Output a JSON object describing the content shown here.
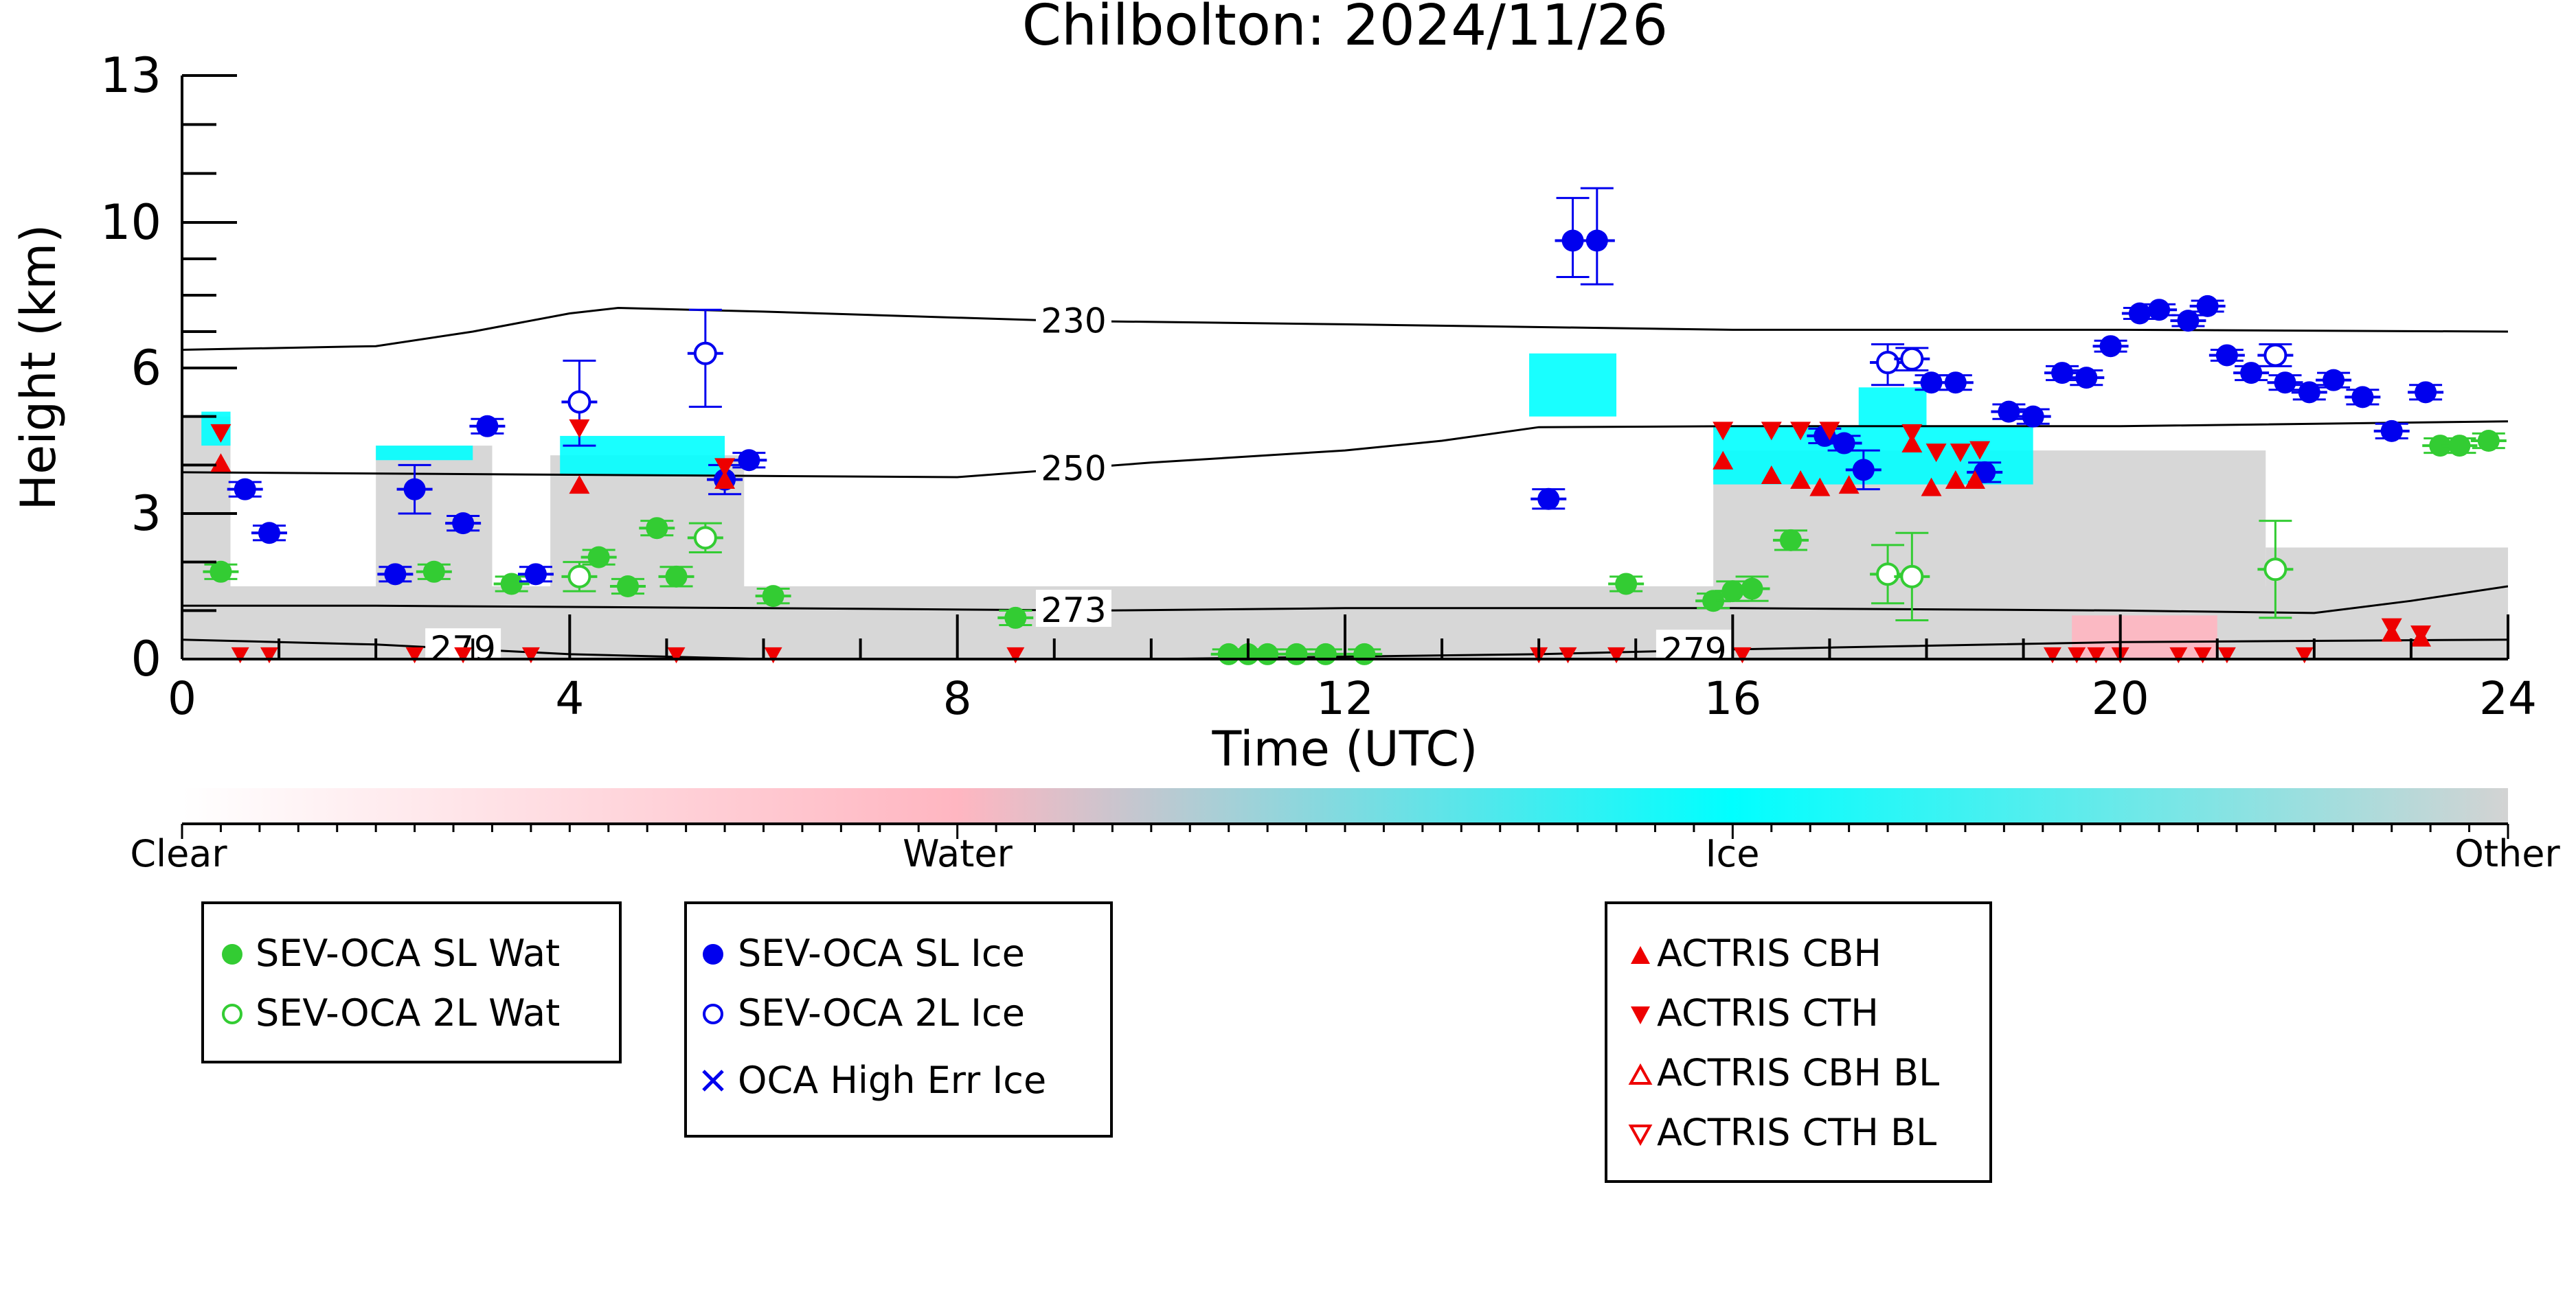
{
  "chart_data": {
    "type": "scatter",
    "title": "Chilbolton: 2024/11/26",
    "xlabel": "Time (UTC)",
    "ylabel": "Height (km)",
    "xlim": [
      0,
      24
    ],
    "xticks": [
      0,
      4,
      8,
      12,
      16,
      20,
      24
    ],
    "xtick_labels": [
      "0",
      "4",
      "8",
      "12",
      "16",
      "20",
      "24"
    ],
    "yticks": [
      0,
      3,
      6,
      10,
      13
    ],
    "ytick_labels": [
      "0",
      "3",
      "6",
      "10",
      "13"
    ],
    "grid": false,
    "background": {
      "description": "cloud phase classification field",
      "colorbar_labels": [
        "Clear",
        "Water",
        "Ice",
        "Other"
      ],
      "colors": {
        "clear": "#ffffff",
        "water": "#ffb6c1",
        "ice": "#00ffff",
        "other": "#d3d3d3"
      }
    },
    "contours": [
      {
        "label": "230",
        "x": [
          0,
          2,
          3,
          4,
          4.5,
          6,
          9,
          12,
          16,
          20,
          24
        ],
        "y": [
          6.5,
          6.6,
          7.0,
          7.5,
          7.65,
          7.55,
          7.3,
          7.2,
          7.05,
          7.05,
          7.0
        ]
      },
      {
        "label": "250",
        "x": [
          0,
          4,
          8,
          10,
          12,
          13,
          14,
          16,
          20,
          24
        ],
        "y": [
          3.85,
          3.8,
          3.75,
          4.05,
          4.3,
          4.5,
          4.78,
          4.8,
          4.8,
          4.9
        ]
      },
      {
        "label": "273",
        "x": [
          0,
          2,
          6,
          9.5,
          12,
          16,
          20,
          22,
          23,
          24
        ],
        "y": [
          1.1,
          1.1,
          1.05,
          1.0,
          1.05,
          1.05,
          1.0,
          0.95,
          1.2,
          1.5
        ]
      },
      {
        "label": "279",
        "x": [
          0,
          2,
          4,
          6,
          8,
          12,
          14,
          16,
          20,
          24
        ],
        "y": [
          0.4,
          0.3,
          0.1,
          0.0,
          -0.05,
          0.05,
          0.1,
          0.2,
          0.35,
          0.4
        ]
      }
    ],
    "series": [
      {
        "name": "SEV-OCA SL Wat",
        "color": "#33cc33",
        "marker": "filled-circle",
        "x": [
          0.4,
          2.6,
          3.4,
          4.3,
          4.6,
          4.9,
          5.1,
          6.1,
          8.6,
          10.8,
          11.0,
          11.2,
          11.5,
          11.8,
          12.2,
          14.9,
          15.8,
          16.0,
          16.2,
          16.6,
          23.3,
          23.5,
          23.8
        ],
        "y": [
          1.8,
          1.8,
          1.55,
          2.1,
          1.5,
          2.7,
          1.7,
          1.3,
          0.85,
          0.1,
          0.1,
          0.1,
          0.1,
          0.1,
          0.1,
          1.55,
          1.2,
          1.4,
          1.45,
          2.45,
          4.4,
          4.4,
          4.5
        ],
        "err": [
          0.15,
          0.15,
          0.15,
          0.15,
          0.15,
          0.15,
          0.2,
          0.15,
          0.15,
          0.1,
          0.1,
          0.1,
          0.1,
          0.1,
          0.1,
          0.15,
          0.15,
          0.2,
          0.25,
          0.2,
          0.15,
          0.15,
          0.15
        ]
      },
      {
        "name": "SEV-OCA 2L Wat",
        "color": "#33cc33",
        "marker": "open-circle",
        "x": [
          4.1,
          5.4,
          17.6,
          17.85,
          21.6
        ],
        "y": [
          1.7,
          2.5,
          1.75,
          1.7,
          1.85
        ],
        "err": [
          0.3,
          0.3,
          0.6,
          0.9,
          1.0
        ]
      },
      {
        "name": "SEV-OCA SL Ice",
        "color": "#0000ee",
        "marker": "filled-circle",
        "x": [
          0.65,
          0.9,
          2.2,
          2.4,
          2.9,
          3.15,
          3.65,
          5.6,
          5.85,
          14.1,
          14.35,
          14.6,
          16.95,
          17.15,
          17.35,
          18.05,
          18.3,
          18.6,
          18.85,
          19.1,
          19.4,
          19.65,
          19.9,
          20.2,
          20.4,
          20.7,
          20.9,
          21.1,
          21.35,
          21.7,
          21.95,
          22.2,
          22.5,
          22.8,
          23.15
        ],
        "y": [
          3.5,
          2.6,
          1.75,
          3.5,
          2.8,
          4.8,
          1.75,
          3.7,
          4.1,
          3.3,
          9.5,
          9.5,
          4.6,
          4.45,
          3.9,
          5.7,
          5.7,
          3.85,
          5.1,
          5.0,
          5.9,
          5.8,
          6.6,
          7.5,
          7.6,
          7.3,
          7.7,
          6.35,
          5.9,
          5.7,
          5.5,
          5.75,
          5.4,
          4.7,
          5.5
        ],
        "err": [
          0.15,
          0.15,
          0.15,
          0.5,
          0.15,
          0.15,
          0.15,
          0.3,
          0.15,
          0.2,
          1.0,
          1.2,
          0.15,
          0.15,
          0.4,
          0.15,
          0.15,
          0.2,
          0.15,
          0.15,
          0.15,
          0.15,
          0.15,
          0.15,
          0.15,
          0.15,
          0.15,
          0.15,
          0.15,
          0.15,
          0.15,
          0.15,
          0.15,
          0.15,
          0.15
        ]
      },
      {
        "name": "SEV-OCA 2L Ice",
        "color": "#0000ee",
        "marker": "open-circle",
        "x": [
          4.1,
          5.4,
          17.6,
          17.85,
          21.6
        ],
        "y": [
          5.3,
          6.4,
          6.15,
          6.25,
          6.35
        ],
        "err": [
          0.9,
          1.2,
          0.5,
          0.3,
          0.3
        ]
      },
      {
        "name": "OCA High Err Ice",
        "color": "#0000ee",
        "marker": "x",
        "x": [],
        "y": []
      },
      {
        "name": "ACTRIS CBH",
        "color": "#ee0000",
        "marker": "triangle-up",
        "x": [
          0.4,
          4.1,
          5.6,
          15.9,
          16.4,
          16.7,
          16.9,
          17.2,
          17.85,
          18.05,
          18.3,
          18.5,
          22.8,
          23.1
        ],
        "y": [
          4.05,
          3.6,
          3.7,
          4.1,
          3.8,
          3.7,
          3.55,
          3.6,
          4.45,
          3.55,
          3.7,
          3.7,
          0.55,
          0.45
        ]
      },
      {
        "name": "ACTRIS CTH",
        "color": "#ee0000",
        "marker": "triangle-down",
        "x": [
          0.4,
          4.1,
          5.6,
          15.9,
          16.4,
          16.7,
          17.0,
          17.85,
          18.1,
          18.35,
          18.55,
          22.8,
          23.1
        ],
        "y": [
          4.65,
          4.75,
          3.95,
          4.7,
          4.7,
          4.7,
          4.7,
          4.65,
          4.25,
          4.25,
          4.3,
          0.65,
          0.5
        ]
      },
      {
        "name": "ACTRIS CBH BL",
        "color": "#ee0000",
        "marker": "open-triangle-up",
        "x": [],
        "y": []
      },
      {
        "name": "ACTRIS CTH BL",
        "color": "#ee0000",
        "marker": "open-triangle-down",
        "x": [],
        "y": []
      }
    ],
    "near_ground_markers": {
      "color": "#ee0000",
      "x": [
        0.6,
        0.9,
        2.4,
        2.9,
        3.6,
        5.1,
        6.1,
        8.6,
        14.0,
        14.3,
        14.8,
        16.1,
        19.3,
        19.55,
        19.75,
        20.0,
        20.6,
        20.85,
        21.1,
        21.9
      ],
      "y": [
        0.02,
        0.02,
        0.02,
        0.02,
        0.02,
        0.02,
        0.02,
        0.02,
        0.02,
        0.02,
        0.02,
        0.02,
        0.02,
        0.02,
        0.02,
        0.02,
        0.02,
        0.02,
        0.02,
        0.02
      ]
    },
    "legends": {
      "water": [
        "SEV-OCA SL Wat",
        "SEV-OCA 2L Wat"
      ],
      "ice": [
        "SEV-OCA SL Ice",
        "SEV-OCA 2L Ice",
        "OCA High Err Ice"
      ],
      "actris": [
        "ACTRIS CBH",
        "ACTRIS CTH",
        "ACTRIS CBH BL",
        "ACTRIS CTH BL"
      ]
    }
  }
}
